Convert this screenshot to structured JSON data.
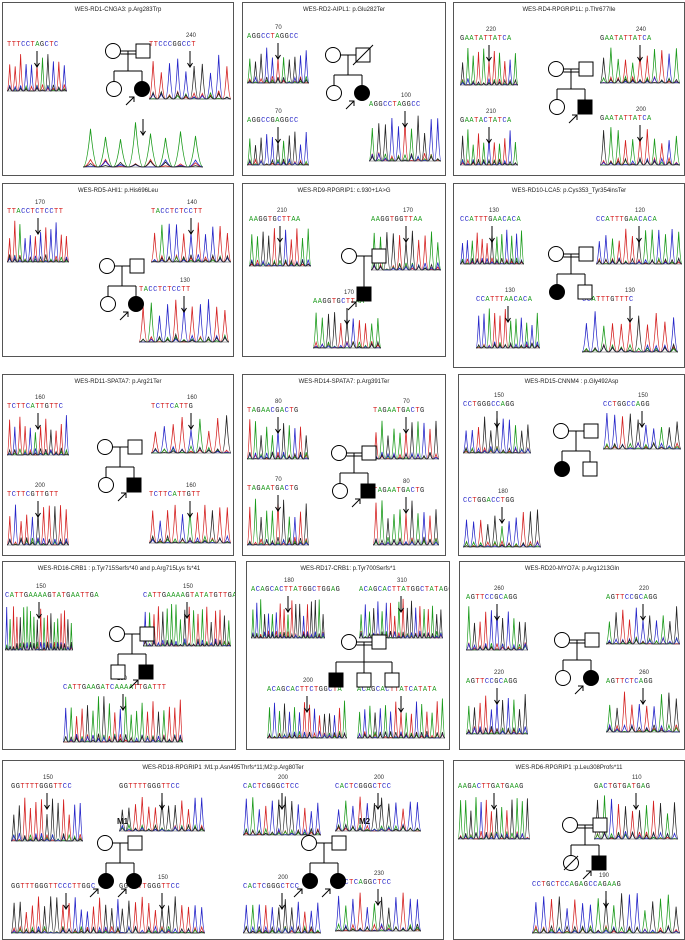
{
  "panels": [
    {
      "id": "p1",
      "title": "WES-RD1-CNGA3: p.Arg283Trp",
      "traces": [
        {
          "seq": "TTTCCTAGCTC",
          "num": "",
          "c": "mix"
        },
        {
          "seq": "TTCCCGGCCT",
          "num": "240",
          "c": "mix2"
        },
        {
          "seq": "",
          "num": "",
          "c": "mix"
        }
      ],
      "ped": "A"
    },
    {
      "id": "p2",
      "title": "WES-RD2-AIPL1: p.Glu282Ter",
      "traces": [
        {
          "seq": "AGGCCTAGGCC",
          "num": "70",
          "c": "mix"
        },
        {
          "seq": "AGGCCTAGGCC",
          "num": "100",
          "c": "mix2"
        },
        {
          "seq": "AGGCCGAGGCC",
          "num": "70",
          "c": "mix"
        }
      ],
      "ped": "B"
    },
    {
      "id": "p3",
      "title": "WES-RD4-RPGRIP1L: p.Thr677Ile",
      "traces": [
        {
          "seq": "GAATATTATCA",
          "num": "220",
          "c": "mix"
        },
        {
          "seq": "GAATATTATCA",
          "num": "240",
          "c": "mix"
        },
        {
          "seq": "GAATACTATCA",
          "num": "210",
          "c": "mix"
        },
        {
          "seq": "GAATATTATCA",
          "num": "200",
          "c": "mix"
        }
      ],
      "ped": "C"
    },
    {
      "id": "p4",
      "title": "WES-RD5-AHI1: p.His696Leu",
      "traces": [
        {
          "seq": "TTACCTCTCCTT",
          "num": "170",
          "c": "mix"
        },
        {
          "seq": "TACCTCTCCTT",
          "num": "140",
          "c": "mix"
        },
        {
          "seq": "TACCTCTCCTT",
          "num": "130",
          "c": "mix"
        }
      ],
      "ped": "D"
    },
    {
      "id": "p5",
      "title": "WES-RD9-RPGRIP1: c.930+1A>G",
      "traces": [
        {
          "seq": "AAGGTGCTTAA",
          "num": "210",
          "c": "mix"
        },
        {
          "seq": "AAGGTGGTTAA",
          "num": "170",
          "c": "mix"
        },
        {
          "seq": "AAGGTGCTTAA",
          "num": "170",
          "c": "mix"
        }
      ],
      "ped": "E"
    },
    {
      "id": "p6",
      "title": "WES-RD10-LCA5: p.Cys353_Tyr354insTer",
      "traces": [
        {
          "seq": "CCATTTGAACACA",
          "num": "130",
          "c": "mix"
        },
        {
          "seq": "CCATTTGAACACA",
          "num": "120",
          "c": "mix"
        },
        {
          "seq": "CCATTTAACACA",
          "num": "130",
          "c": "mix"
        },
        {
          "seq": "CCATTTGTTTC",
          "num": "130",
          "c": "mix"
        }
      ],
      "ped": "F"
    },
    {
      "id": "p7",
      "title": "WES-RD11-SPATA7: p.Arg21Ter",
      "traces": [
        {
          "seq": "TCTTCATTGTTC",
          "num": "160",
          "c": "mix"
        },
        {
          "seq": "TCTTCATTG",
          "num": "160",
          "c": "mix"
        },
        {
          "seq": "TCTTCGTTGTT",
          "num": "200",
          "c": "mix"
        },
        {
          "seq": "TCTTCATTGTT",
          "num": "160",
          "c": "mix"
        }
      ],
      "ped": "G"
    },
    {
      "id": "p8",
      "title": "WES-RD14-SPATA7: p.Arg391Ter",
      "traces": [
        {
          "seq": "TAGAACGACTG",
          "num": "80",
          "c": "mix"
        },
        {
          "seq": "TAGAATGACTG",
          "num": "70",
          "c": "mix"
        },
        {
          "seq": "TAGAATGACTG",
          "num": "70",
          "c": "mix"
        },
        {
          "seq": "TAGAATGACTG",
          "num": "80",
          "c": "mix"
        }
      ],
      "ped": "H"
    },
    {
      "id": "p9",
      "title": "WES-RD15-CNNM4 : p.Gly492Asp",
      "traces": [
        {
          "seq": "CCTGGGCCAGG",
          "num": "150",
          "c": "mix"
        },
        {
          "seq": "CCTGGCCAGG",
          "num": "150",
          "c": "mix"
        },
        {
          "seq": "CCTGGACCTGG",
          "num": "180",
          "c": "mix"
        }
      ],
      "ped": "I"
    },
    {
      "id": "p10",
      "title": "WES-RD16-CRB1 : p.Tyr715Serfs*40 and p.Arg715Lys fs*41",
      "traces": [
        {
          "seq": "CATTGAAAAGTATGAATTGA",
          "num": "150",
          "c": "mix"
        },
        {
          "seq": "CATTGAAAAGTATATGTTGA",
          "num": "150",
          "c": "mix"
        },
        {
          "seq": "CATTGAAGATCAAAATTGATTT",
          "num": "180",
          "c": "mix"
        }
      ],
      "ped": "J"
    },
    {
      "id": "p11",
      "title": "WES-RD17-CRB1: p.Tyr700Serfs*1",
      "traces": [
        {
          "seq": "ACAGCACTTATGGCTGGAG",
          "num": "180",
          "c": "mix"
        },
        {
          "seq": "ACAGCACTTATGGCTATAGG",
          "num": "310",
          "c": "mix"
        },
        {
          "seq": "ACAGCACTTCTGGCTA",
          "num": "200",
          "c": "mix"
        },
        {
          "seq": "ACAGCACTTATCATATA",
          "num": "",
          "c": "mix"
        }
      ],
      "ped": "K"
    },
    {
      "id": "p12",
      "title": "WES-RD20-MYO7A: p.Arg1213Gln",
      "traces": [
        {
          "seq": "AGTTCCGCAGG",
          "num": "260",
          "c": "mix"
        },
        {
          "seq": "AGTTCCGCAGG",
          "num": "220",
          "c": "mix"
        },
        {
          "seq": "AGTTCCGCAGG",
          "num": "220",
          "c": "mix"
        },
        {
          "seq": "AGTTCTCAGG",
          "num": "260",
          "c": "mix"
        }
      ],
      "ped": "L"
    },
    {
      "id": "p13",
      "title": "WES-RD18-RPGRIP1 :M1:p.Asn495Thrfs*11;M2:p.Arg80Ter",
      "traces": [
        {
          "seq": "GGTTTTGGGTTCC",
          "num": "150",
          "c": "mix"
        },
        {
          "seq": "GGTTTTGGGTTCC",
          "num": "",
          "c": "mix"
        },
        {
          "seq": "GGTTTGGGTTCCCTTGGC",
          "num": "",
          "c": "mix"
        },
        {
          "seq": "GGTTTTGGGTTCC",
          "num": "150",
          "c": "mix"
        },
        {
          "seq": "CACTCGGGCTCC",
          "num": "200",
          "c": "mix"
        },
        {
          "seq": "CACTCGGGCTCC",
          "num": "200",
          "c": "mix"
        },
        {
          "seq": "CACTCGGGCTCC",
          "num": "200",
          "c": "mix"
        },
        {
          "seq": "CACTCAGGCTCC",
          "num": "230",
          "c": "mix"
        }
      ],
      "ped": "M",
      "m1": "M1",
      "m2": "M2"
    },
    {
      "id": "p14",
      "title": "WES-RD6-RPGRIP1 :p.Leu308Profs*11",
      "traces": [
        {
          "seq": "AAGACTTGATGAAG",
          "num": "",
          "c": "mix"
        },
        {
          "seq": "GACTGTGATGAG",
          "num": "110",
          "c": "mix"
        },
        {
          "seq": "CCTGCTCCAGAGCCAGAAG",
          "num": "190",
          "c": "mix"
        }
      ],
      "ped": "N"
    }
  ]
}
